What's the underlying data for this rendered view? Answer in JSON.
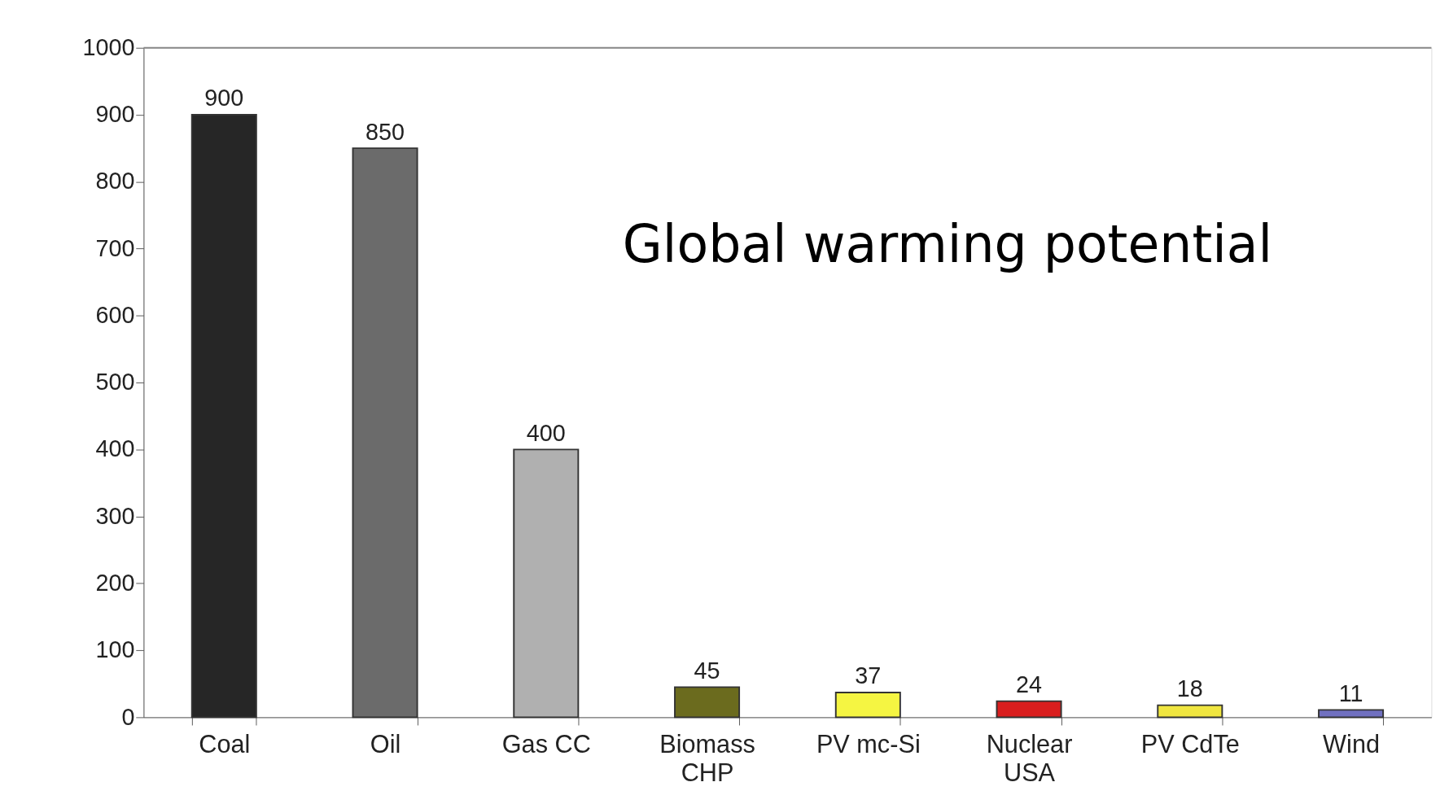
{
  "chart_data": {
    "type": "bar",
    "title": "Global warming potential",
    "categories": [
      "Coal",
      "Oil",
      "Gas CC",
      "Biomass\nCHP",
      "PV mc-Si",
      "Nuclear\nUSA",
      "PV CdTe",
      "Wind"
    ],
    "values": [
      900,
      850,
      400,
      45,
      37,
      24,
      18,
      11
    ],
    "colors": [
      "#262626",
      "#6b6b6b",
      "#b0b0b0",
      "#6b6b1e",
      "#f5f542",
      "#d91e1e",
      "#f0e640",
      "#7070c0"
    ],
    "ylim": [
      0,
      1000
    ],
    "yticks": [
      0,
      100,
      200,
      300,
      400,
      500,
      600,
      700,
      800,
      900,
      1000
    ],
    "data_labels": true,
    "grid": false
  }
}
